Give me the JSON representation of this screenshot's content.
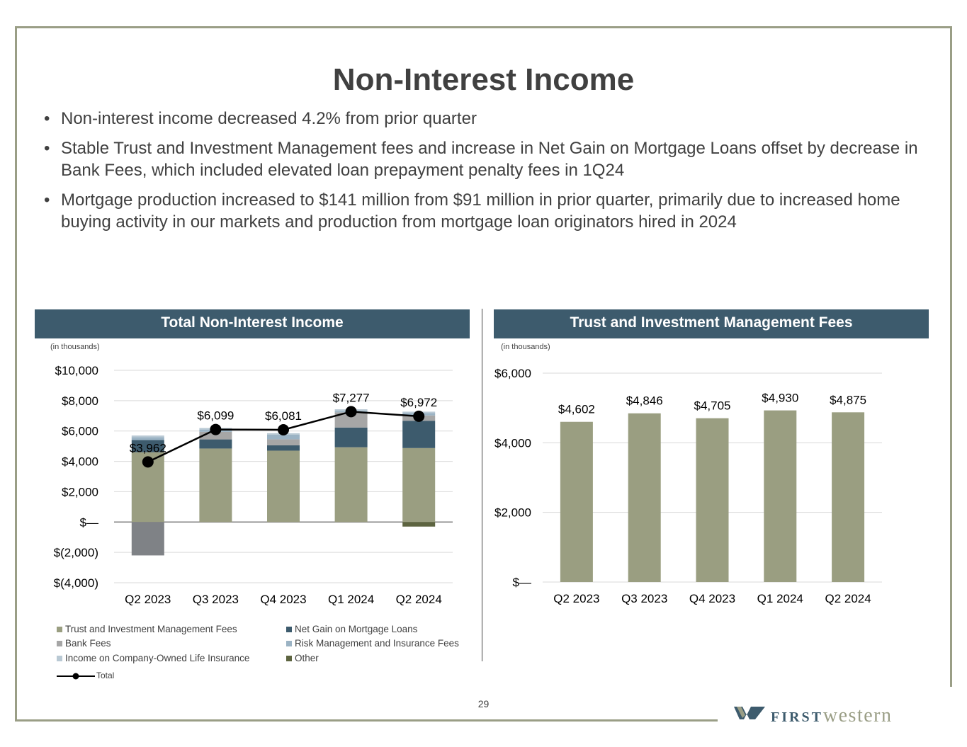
{
  "title": "Non-Interest Income",
  "bullets": [
    "Non-interest income decreased 4.2% from prior quarter",
    "Stable Trust and Investment Management fees and increase in Net Gain on Mortgage Loans offset by decrease in Bank Fees, which included elevated loan prepayment penalty fees in 1Q24",
    "Mortgage production increased to $141 million from $91 million in prior quarter, primarily due to increased home buying activity in our markets and production from mortgage loan originators hired in 2024"
  ],
  "bullet_marker": "•",
  "left_panel": {
    "header": "Total Non-Interest Income",
    "unit_note": "(in thousands)"
  },
  "right_panel": {
    "header": "Trust and Investment Management Fees",
    "unit_note": "(in thousands)"
  },
  "legend": {
    "trust": "Trust and Investment Management Fees",
    "mortgage": "Net Gain on Mortgage Loans",
    "bank": "Bank Fees",
    "risk": "Risk Management and Insurance Fees",
    "coli": "Income on Company-Owned Life Insurance",
    "other": "Other",
    "total": "Total"
  },
  "page_number": "29",
  "logo": {
    "word1": "FIRST",
    "word2": "western"
  },
  "colors": {
    "frame": "#9a9e86",
    "header_bg": "#3d5b6d",
    "trust": "#9a9e81",
    "mortgage": "#3d5b6d",
    "bank": "#a6a6a6",
    "risk": "#9bb3c4",
    "coli": "#b9c9d4",
    "other": "#5d6440",
    "negative_bank": "#7f8286",
    "total_line": "#000000"
  },
  "chart_data": [
    {
      "type": "bar",
      "stacked": true,
      "categories": [
        "Q2 2023",
        "Q3 2023",
        "Q4 2023",
        "Q1 2024",
        "Q2 2024"
      ],
      "ylim": [
        -4000,
        10000
      ],
      "yticks": [
        10000,
        8000,
        6000,
        4000,
        2000,
        0,
        -2000,
        -4000
      ],
      "ytick_labels": [
        "$10,000",
        "$8,000",
        "$6,000",
        "$4,000",
        "$2,000",
        "$—",
        "$(2,000)",
        "$(4,000)"
      ],
      "grid": true,
      "legend_position": "bottom",
      "series": [
        {
          "name": "Trust and Investment Management Fees",
          "key": "trust",
          "values": [
            4602,
            4846,
            4705,
            4930,
            4875
          ]
        },
        {
          "name": "Net Gain on Mortgage Loans",
          "key": "mortgage",
          "values": [
            800,
            600,
            350,
            1300,
            1800
          ]
        },
        {
          "name": "Bank Fees",
          "key": "bank",
          "values": [
            -2200,
            500,
            400,
            1000,
            350
          ]
        },
        {
          "name": "Risk Management and Insurance Fees",
          "key": "risk",
          "values": [
            200,
            150,
            300,
            100,
            150
          ]
        },
        {
          "name": "Income on Company-Owned Life Insurance",
          "key": "coli",
          "values": [
            100,
            100,
            100,
            100,
            100
          ]
        },
        {
          "name": "Other",
          "key": "other",
          "values": [
            0,
            0,
            0,
            0,
            -300
          ]
        }
      ],
      "total": {
        "name": "Total",
        "values": [
          3962,
          6099,
          6081,
          7277,
          6972
        ],
        "labels": [
          "$3,962",
          "$6,099",
          "$6,081",
          "$7,277",
          "$6,972"
        ]
      }
    },
    {
      "type": "bar",
      "categories": [
        "Q2 2023",
        "Q3 2023",
        "Q4 2023",
        "Q1 2024",
        "Q2 2024"
      ],
      "values": [
        4602,
        4846,
        4705,
        4930,
        4875
      ],
      "value_labels": [
        "$4,602",
        "$4,846",
        "$4,705",
        "$4,930",
        "$4,875"
      ],
      "ylim": [
        0,
        6000
      ],
      "yticks": [
        6000,
        4000,
        2000,
        0
      ],
      "ytick_labels": [
        "$6,000",
        "$4,000",
        "$2,000",
        "$—"
      ],
      "grid": true
    }
  ]
}
